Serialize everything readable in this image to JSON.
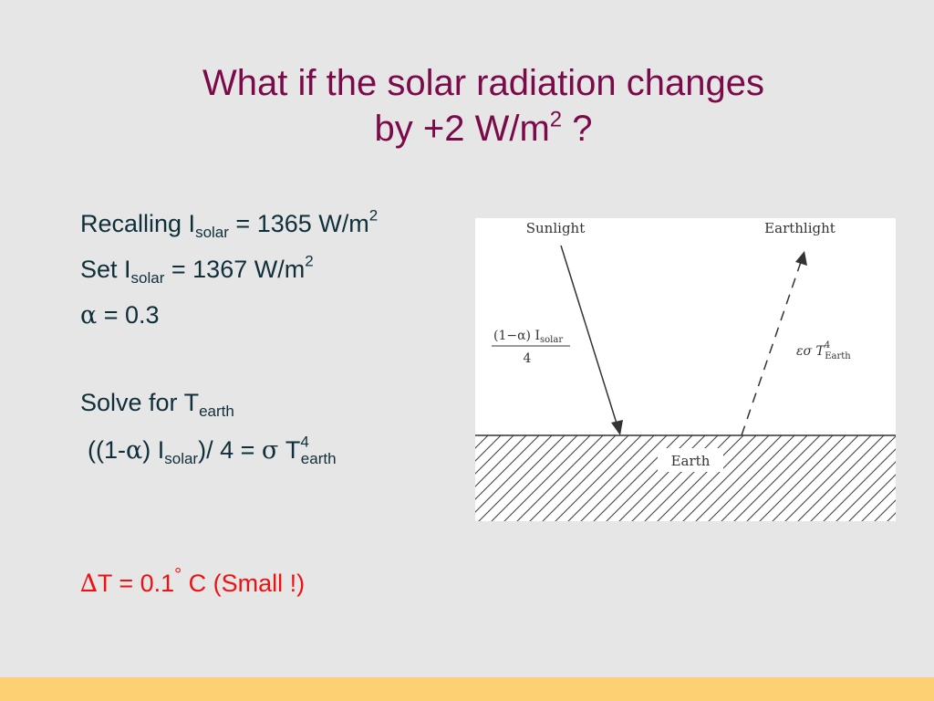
{
  "title": {
    "line1": "What if the solar radiation changes",
    "line2_pre": "by +2 W/m",
    "line2_sup": "2",
    "line2_post": " ?"
  },
  "lines": [
    {
      "pre": "Recalling I",
      "sub": "solar",
      "mid": " = 1365 W/m",
      "sup": "2"
    },
    {
      "pre": "Set I",
      "sub": "solar",
      "mid": " = 1367 W/m",
      "sup": "2"
    },
    {
      "alpha": "α",
      "text": " = 0.3"
    },
    {
      "pre": "Solve for T",
      "sub": "earth"
    },
    {
      "open": "((1-",
      "alpha": "α",
      "close": ") I",
      "sub": "solar",
      "mid": ")/ 4  = ",
      "sigma": "σ",
      "t": " T",
      "sup": "4",
      "sub2": "earth"
    }
  ],
  "result": {
    "delta": "∆",
    "pre": "T = 0.1",
    "deg": "°",
    "post": "  C (Small !)"
  },
  "diagram": {
    "sunlight": "Sunlight",
    "earthlight": "Earthlight",
    "earth": "Earth",
    "solar_in": {
      "numerator": "(1−α) I",
      "sub": "solar",
      "denominator": "4"
    },
    "emission": {
      "prefix": "εσ T",
      "sup": "4",
      "sub": "Earth"
    }
  },
  "colors": {
    "background": "#e6e6e6",
    "title": "#7a0a4a",
    "body_text": "#0f2f3a",
    "result": "#ee1111",
    "footer_bar": "#fdd073"
  }
}
